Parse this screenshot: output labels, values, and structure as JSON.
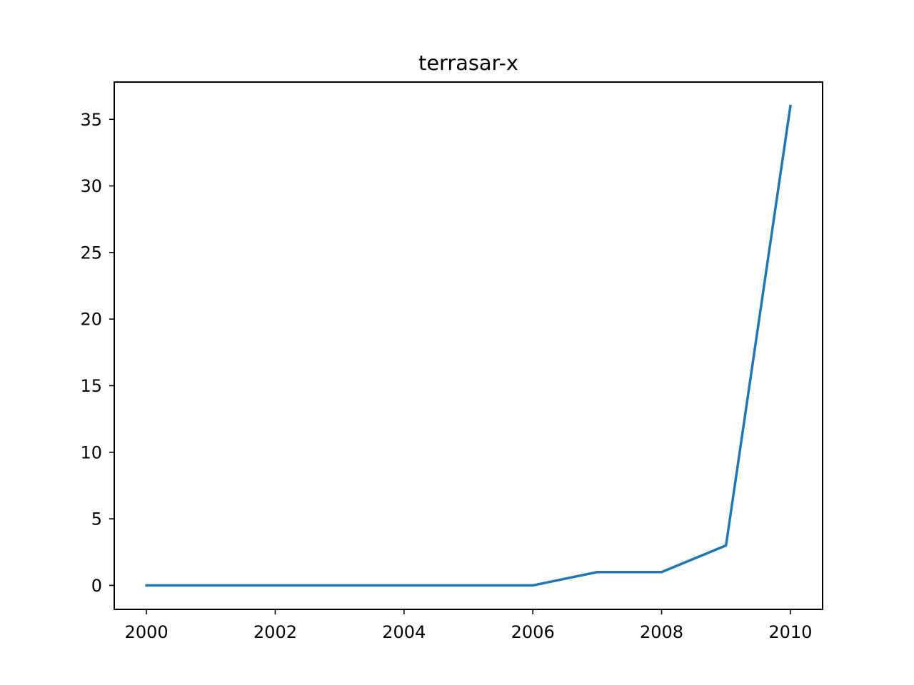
{
  "chart_data": {
    "type": "line",
    "title": "terrasar-x",
    "xlabel": "",
    "ylabel": "",
    "x": [
      2000,
      2001,
      2002,
      2003,
      2004,
      2005,
      2006,
      2007,
      2008,
      2009,
      2010
    ],
    "series": [
      {
        "values": [
          0,
          0,
          0,
          0,
          0,
          0,
          0,
          1,
          1,
          3,
          36
        ],
        "color": "#1f77b4"
      }
    ],
    "xlim": [
      1999.5,
      2010.5
    ],
    "ylim": [
      -1.8,
      37.8
    ],
    "xticks": [
      2000,
      2002,
      2004,
      2006,
      2008,
      2010
    ],
    "yticks": [
      0,
      5,
      10,
      15,
      20,
      25,
      30,
      35
    ],
    "xtick_labels": [
      "2000",
      "2002",
      "2004",
      "2006",
      "2008",
      "2010"
    ],
    "ytick_labels": [
      "0",
      "5",
      "10",
      "15",
      "20",
      "25",
      "30",
      "35"
    ],
    "grid": false,
    "legend": "none"
  }
}
